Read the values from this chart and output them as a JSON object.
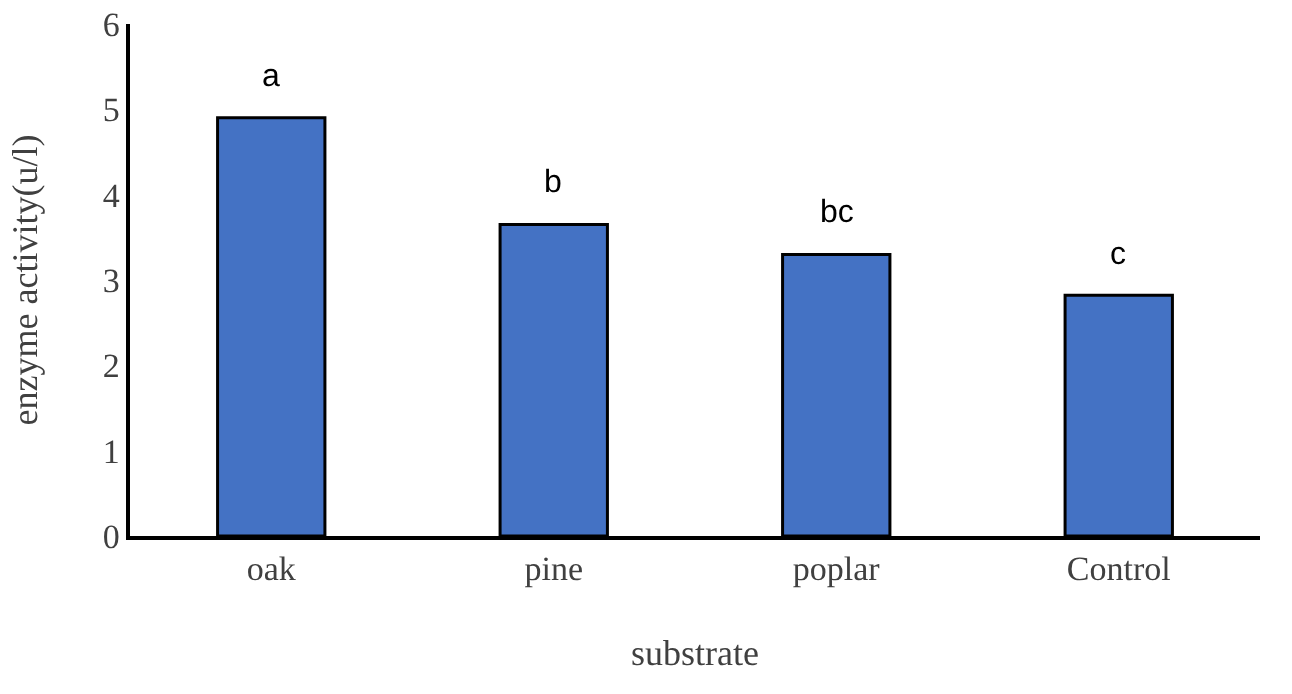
{
  "chart_data": {
    "type": "bar",
    "xlabel": "substrate",
    "ylabel": "enzyme activity(u/l)",
    "categories": [
      "oak",
      "pine",
      "poplar",
      "Control"
    ],
    "values": [
      4.9,
      3.65,
      3.3,
      2.82
    ],
    "color": "#4472c4",
    "ylim": [
      0,
      6
    ],
    "yticks": [
      0,
      1,
      2,
      3,
      4,
      5,
      6
    ],
    "grid": false,
    "legend": false,
    "annotations": [
      {
        "text": "a",
        "x": "oak",
        "y": 4.9
      },
      {
        "text": "b",
        "x": "pine",
        "y": 3.65
      },
      {
        "text": "bc",
        "x": "poplar",
        "y": 3.3
      },
      {
        "text": "c",
        "x": "Control",
        "y": 2.82
      }
    ]
  }
}
